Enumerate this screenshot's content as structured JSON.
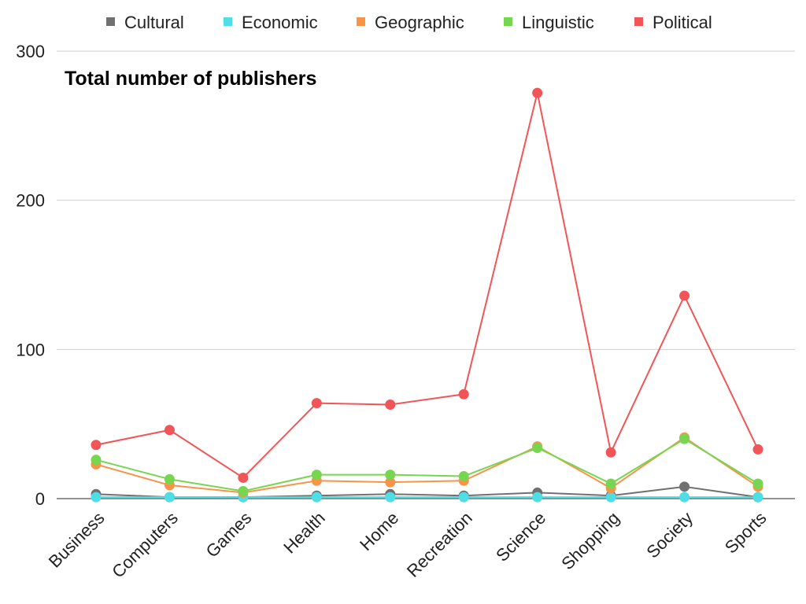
{
  "chart_data": {
    "type": "line",
    "title": "Total number of publishers",
    "xlabel": "",
    "ylabel": "",
    "categories": [
      "Business",
      "Computers",
      "Games",
      "Health",
      "Home",
      "Recreation",
      "Science",
      "Shopping",
      "Society",
      "Sports"
    ],
    "ylim": [
      0,
      300
    ],
    "yticks": [
      0,
      100,
      200,
      300
    ],
    "grid": true,
    "legend_position": "top",
    "series": [
      {
        "name": "Cultural",
        "color": "#707070",
        "values": [
          3,
          1,
          1,
          2,
          3,
          2,
          4,
          2,
          8,
          1
        ]
      },
      {
        "name": "Economic",
        "color": "#4fdde6",
        "values": [
          1,
          1,
          1,
          1,
          1,
          1,
          1,
          1,
          1,
          1
        ]
      },
      {
        "name": "Geographic",
        "color": "#f7944a",
        "values": [
          23,
          9,
          4,
          12,
          11,
          12,
          35,
          7,
          41,
          8
        ]
      },
      {
        "name": "Linguistic",
        "color": "#77d64f",
        "values": [
          26,
          13,
          5,
          16,
          16,
          15,
          34,
          10,
          40,
          10
        ]
      },
      {
        "name": "Political",
        "color": "#f25557",
        "values": [
          36,
          46,
          14,
          64,
          63,
          70,
          272,
          31,
          136,
          33
        ]
      }
    ]
  }
}
